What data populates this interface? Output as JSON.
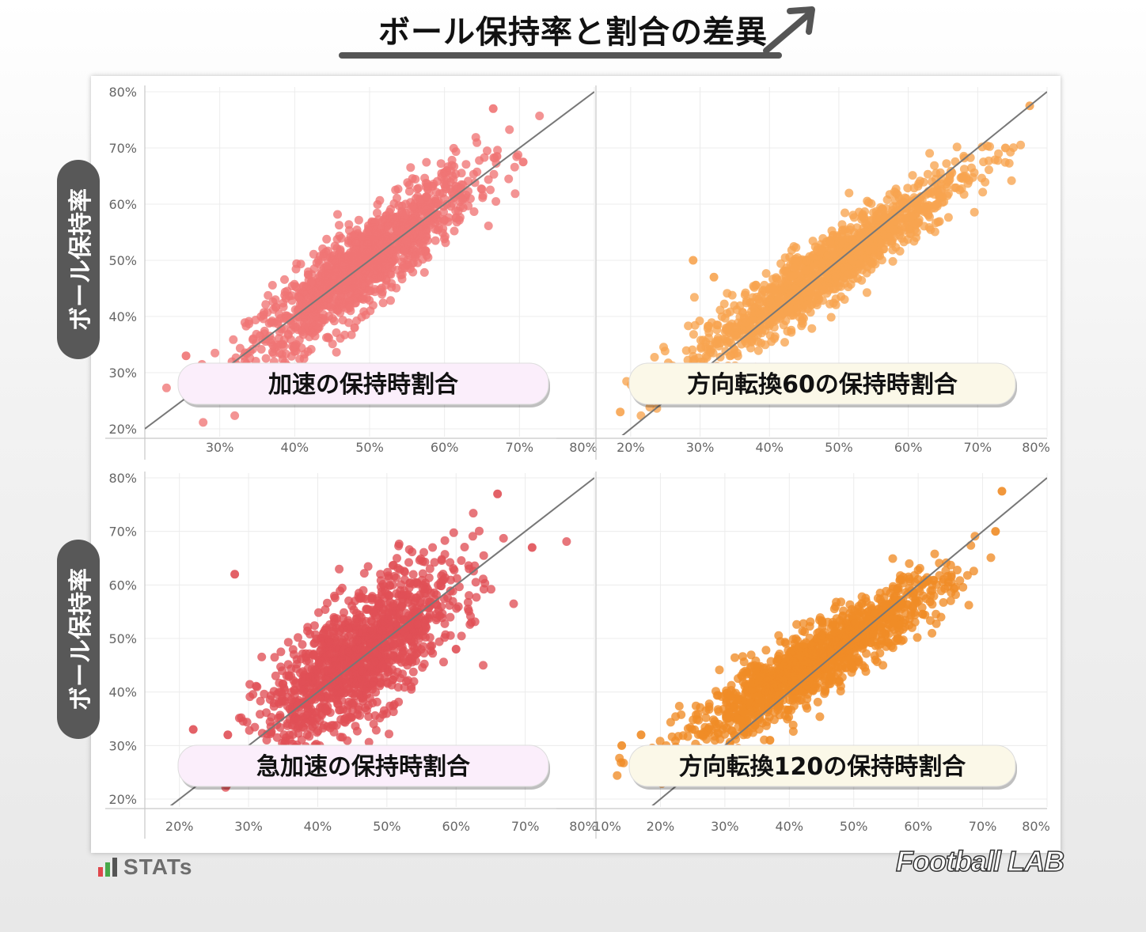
{
  "title": "ボール保持率と割合の差異",
  "y_axis_badge": "ボール保持率",
  "brand_left": "STATs",
  "brand_right": "Football LAB",
  "colors": {
    "accel": "#f07474",
    "dir60": "#f7a450",
    "rapid": "#e05056",
    "dir120": "#f08c26"
  },
  "chart_data": [
    {
      "type": "scatter",
      "title": "加速の保持時割合",
      "color_key": "accel",
      "xlim": [
        20,
        80
      ],
      "ylim": [
        20,
        80
      ],
      "xticks": [
        "30%",
        "40%",
        "50%",
        "60%",
        "70%",
        "80%"
      ],
      "xtick_values": [
        30,
        40,
        50,
        60,
        70,
        80
      ],
      "yticks": [
        "80%",
        "70%",
        "60%",
        "50%",
        "40%",
        "30%",
        "20%"
      ],
      "ytick_values": [
        80,
        70,
        60,
        50,
        40,
        30,
        20
      ],
      "cloud": {
        "x_mean": 49,
        "x_sd": 7.5,
        "y_slope": 1.0,
        "y_sd": 3.8,
        "n": 1300
      },
      "outliers": [
        [
          66.5,
          77
        ],
        [
          70.5,
          67.5
        ],
        [
          67,
          68.5
        ],
        [
          25.5,
          33
        ],
        [
          29,
          29
        ],
        [
          48,
          38
        ]
      ]
    },
    {
      "type": "scatter",
      "title": "方向転換60の保持時割合",
      "color_key": "dir60",
      "xlim": [
        15,
        80
      ],
      "ylim": [
        20,
        80
      ],
      "xticks": [
        "20%",
        "30%",
        "40%",
        "50%",
        "60%",
        "70%",
        "80%"
      ],
      "xtick_values": [
        20,
        30,
        40,
        50,
        60,
        70,
        80
      ],
      "yticks": [
        "80%",
        "70%",
        "60%",
        "50%",
        "40%",
        "30%",
        "20%"
      ],
      "ytick_values": [
        80,
        70,
        60,
        50,
        40,
        30,
        20
      ],
      "cloud": {
        "x_mean": 48,
        "x_sd": 9.5,
        "y_slope": 0.83,
        "y_sd": 3.0,
        "n": 1300
      },
      "outliers": [
        [
          77.5,
          77.5
        ],
        [
          18.5,
          23
        ],
        [
          22,
          30
        ],
        [
          74,
          70
        ],
        [
          29,
          50
        ],
        [
          32,
          47
        ]
      ]
    },
    {
      "type": "scatter",
      "title": "急加速の保持時割合",
      "color_key": "rapid",
      "xlim": [
        15,
        80
      ],
      "ylim": [
        20,
        80
      ],
      "xticks": [
        "20%",
        "30%",
        "40%",
        "50%",
        "60%",
        "70%",
        "80%"
      ],
      "xtick_values": [
        20,
        30,
        40,
        50,
        60,
        70,
        80
      ],
      "yticks": [
        "80%",
        "70%",
        "60%",
        "50%",
        "40%",
        "30%",
        "20%"
      ],
      "ytick_values": [
        80,
        70,
        60,
        50,
        40,
        30,
        20
      ],
      "cloud": {
        "x_mean": 46,
        "x_sd": 7.0,
        "y_slope": 0.9,
        "y_sd": 5.8,
        "n": 1300
      },
      "outliers": [
        [
          66,
          77
        ],
        [
          28,
          62
        ],
        [
          22,
          33
        ],
        [
          71,
          67
        ],
        [
          27,
          32
        ],
        [
          60,
          48
        ]
      ]
    },
    {
      "type": "scatter",
      "title": "方向転換120の保持時割合",
      "color_key": "dir120",
      "xlim": [
        10,
        80
      ],
      "ylim": [
        20,
        80
      ],
      "xticks": [
        "10%",
        "20%",
        "30%",
        "40%",
        "50%",
        "60%",
        "70%",
        "80%"
      ],
      "xtick_values": [
        10,
        20,
        30,
        40,
        50,
        60,
        70,
        80
      ],
      "yticks": [
        "80%",
        "70%",
        "60%",
        "50%",
        "40%",
        "30%",
        "20%"
      ],
      "ytick_values": [
        80,
        70,
        60,
        50,
        40,
        30,
        20
      ],
      "cloud": {
        "x_mean": 44,
        "x_sd": 10,
        "y_slope": 0.72,
        "y_sd": 3.2,
        "n": 1300
      },
      "outliers": [
        [
          73,
          77.5
        ],
        [
          72,
          70
        ],
        [
          17,
          32
        ],
        [
          14,
          30
        ],
        [
          29,
          28
        ],
        [
          37,
          31
        ]
      ]
    }
  ]
}
